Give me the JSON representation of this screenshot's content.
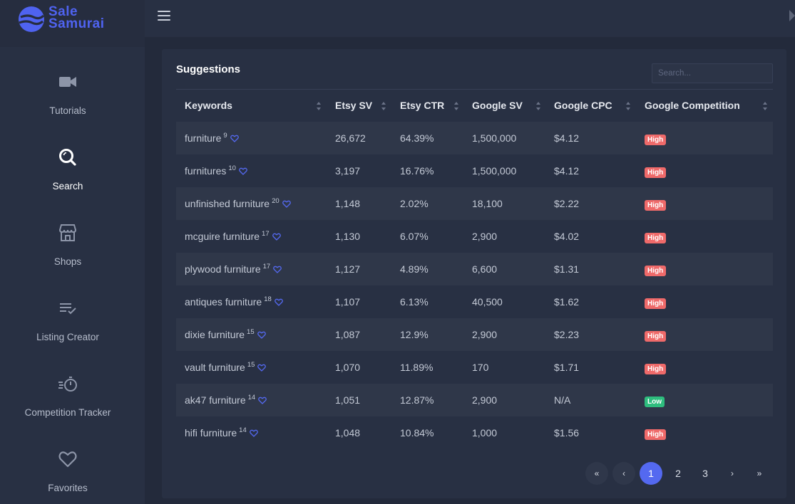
{
  "brand": {
    "line1": "Sale",
    "line2": "Samurai",
    "color": "#4f63f0"
  },
  "sidebar": {
    "items": [
      {
        "label": "Tutorials",
        "icon": "video-camera-icon",
        "active": false
      },
      {
        "label": "Search",
        "icon": "search-icon",
        "active": true
      },
      {
        "label": "Shops",
        "icon": "storefront-icon",
        "active": false
      },
      {
        "label": "Listing Creator",
        "icon": "checklist-icon",
        "active": false
      },
      {
        "label": "Competition Tracker",
        "icon": "stopwatch-icon",
        "active": false
      },
      {
        "label": "Favorites",
        "icon": "heart-icon",
        "active": false
      }
    ]
  },
  "main": {
    "title": "Suggestions",
    "search_placeholder": "Search...",
    "columns": [
      "Keywords",
      "Etsy SV",
      "Etsy CTR",
      "Google SV",
      "Google CPC",
      "Google Competition"
    ],
    "rows": [
      {
        "keyword": "furniture",
        "count": "9",
        "etsy_sv": "26,672",
        "etsy_ctr": "64.39%",
        "google_sv": "1,500,000",
        "google_cpc": "$4.12",
        "competition": "High"
      },
      {
        "keyword": "furnitures",
        "count": "10",
        "etsy_sv": "3,197",
        "etsy_ctr": "16.76%",
        "google_sv": "1,500,000",
        "google_cpc": "$4.12",
        "competition": "High"
      },
      {
        "keyword": "unfinished furniture",
        "count": "20",
        "etsy_sv": "1,148",
        "etsy_ctr": "2.02%",
        "google_sv": "18,100",
        "google_cpc": "$2.22",
        "competition": "High"
      },
      {
        "keyword": "mcguire furniture",
        "count": "17",
        "etsy_sv": "1,130",
        "etsy_ctr": "6.07%",
        "google_sv": "2,900",
        "google_cpc": "$4.02",
        "competition": "High"
      },
      {
        "keyword": "plywood furniture",
        "count": "17",
        "etsy_sv": "1,127",
        "etsy_ctr": "4.89%",
        "google_sv": "6,600",
        "google_cpc": "$1.31",
        "competition": "High"
      },
      {
        "keyword": "antiques furniture",
        "count": "18",
        "etsy_sv": "1,107",
        "etsy_ctr": "6.13%",
        "google_sv": "40,500",
        "google_cpc": "$1.62",
        "competition": "High"
      },
      {
        "keyword": "dixie furniture",
        "count": "15",
        "etsy_sv": "1,087",
        "etsy_ctr": "12.9%",
        "google_sv": "2,900",
        "google_cpc": "$2.23",
        "competition": "High"
      },
      {
        "keyword": "vault furniture",
        "count": "15",
        "etsy_sv": "1,070",
        "etsy_ctr": "11.89%",
        "google_sv": "170",
        "google_cpc": "$1.71",
        "competition": "High"
      },
      {
        "keyword": "ak47 furniture",
        "count": "14",
        "etsy_sv": "1,051",
        "etsy_ctr": "12.87%",
        "google_sv": "2,900",
        "google_cpc": "N/A",
        "competition": "Low"
      },
      {
        "keyword": "hifi furniture",
        "count": "14",
        "etsy_sv": "1,048",
        "etsy_ctr": "10.84%",
        "google_sv": "1,000",
        "google_cpc": "$1.56",
        "competition": "High"
      }
    ],
    "pagination": {
      "first": "«",
      "prev": "‹",
      "pages": [
        "1",
        "2",
        "3"
      ],
      "current": "1",
      "next": "›",
      "last": "»"
    }
  },
  "colors": {
    "accent": "#5469f0",
    "high": "#ef6a6a",
    "low": "#2ebd7e"
  }
}
